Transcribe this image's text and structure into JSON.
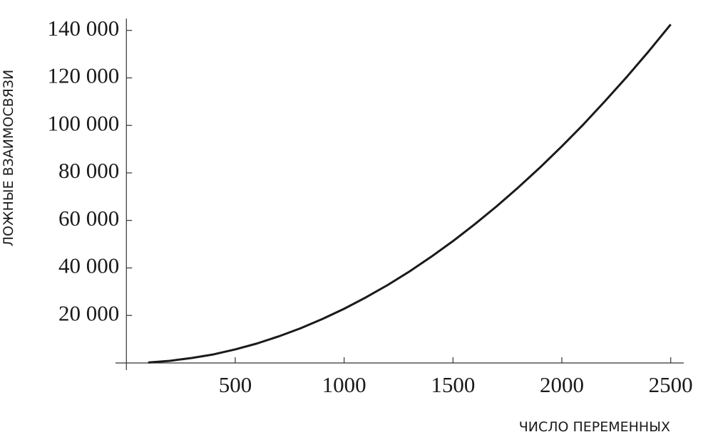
{
  "chart_data": {
    "type": "line",
    "x_label": "ЧИСЛО ПЕРЕМЕННЫХ",
    "y_label": "ЛОЖНЫЕ ВЗАИМОСВЯЗИ",
    "x": [
      100,
      200,
      300,
      400,
      500,
      600,
      700,
      800,
      900,
      1000,
      1100,
      1200,
      1300,
      1400,
      1500,
      1600,
      1700,
      1800,
      1900,
      2000,
      2100,
      2200,
      2300,
      2400,
      2500
    ],
    "series": [
      {
        "color": "#1a1a1a",
        "values": [
          200,
          900,
          2100,
          3600,
          5700,
          8200,
          11200,
          14600,
          18500,
          22800,
          27600,
          32800,
          38500,
          44700,
          51300,
          58400,
          65900,
          73900,
          82300,
          91200,
          100500,
          110400,
          120600,
          131300,
          142500
        ]
      }
    ],
    "xlim": [
      -50,
      2560
    ],
    "ylim": [
      -3000,
      145000
    ],
    "xticks": [
      500,
      1000,
      1500,
      2000,
      2500
    ],
    "yticks": [
      {
        "value": 20000,
        "label": "20 000"
      },
      {
        "value": 40000,
        "label": "40 000"
      },
      {
        "value": 60000,
        "label": "60 000"
      },
      {
        "value": 80000,
        "label": "80 000"
      },
      {
        "value": 100000,
        "label": "100 000"
      },
      {
        "value": 120000,
        "label": "120 000"
      },
      {
        "value": 140000,
        "label": "140 000"
      }
    ]
  }
}
